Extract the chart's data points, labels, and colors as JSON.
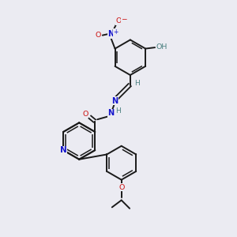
{
  "background_color": "#ebebf2",
  "bond_color": "#1a1a1a",
  "atom_colors": {
    "N": "#1414cc",
    "O": "#cc1414",
    "C": "#1a1a1a",
    "H": "#4a8080"
  }
}
